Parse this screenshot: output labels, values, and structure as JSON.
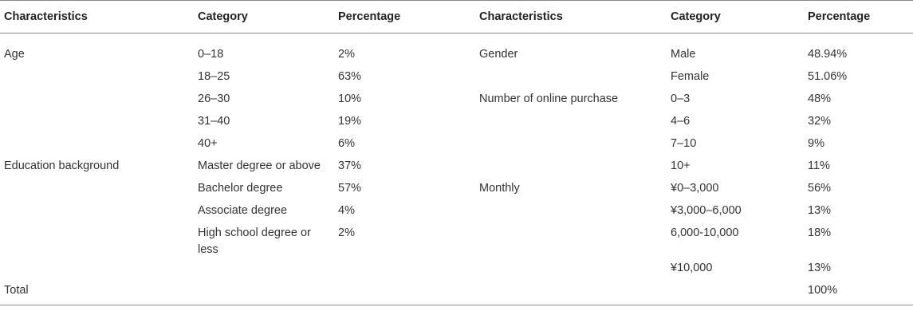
{
  "headers": [
    "Characteristics",
    "Category",
    "Percentage",
    "Characteristics",
    "Category",
    "Percentage"
  ],
  "rows": [
    [
      "Age",
      "0–18",
      "2%",
      "Gender",
      "Male",
      "48.94%"
    ],
    [
      "",
      "18–25",
      "63%",
      "",
      "Female",
      "51.06%"
    ],
    [
      "",
      "26–30",
      "10%",
      "Number of online purchase",
      "0–3",
      "48%"
    ],
    [
      "",
      "31–40",
      "19%",
      "",
      "4–6",
      "32%"
    ],
    [
      "",
      "40+",
      "6%",
      "",
      "7–10",
      "9%"
    ],
    [
      "Education background",
      "Master degree or above",
      "37%",
      "",
      "10+",
      "11%"
    ],
    [
      "",
      "Bachelor degree",
      "57%",
      "Monthly",
      "¥0–3,000",
      "56%"
    ],
    [
      "",
      "Associate degree",
      "4%",
      "",
      "¥3,000–6,000",
      "13%"
    ],
    [
      "",
      "High school degree or less",
      "2%",
      "",
      "6,000-10,000",
      "18%"
    ],
    [
      "",
      "",
      "",
      "",
      "¥10,000",
      "13%"
    ],
    [
      "Total",
      "",
      "",
      "",
      "",
      "100%"
    ]
  ]
}
